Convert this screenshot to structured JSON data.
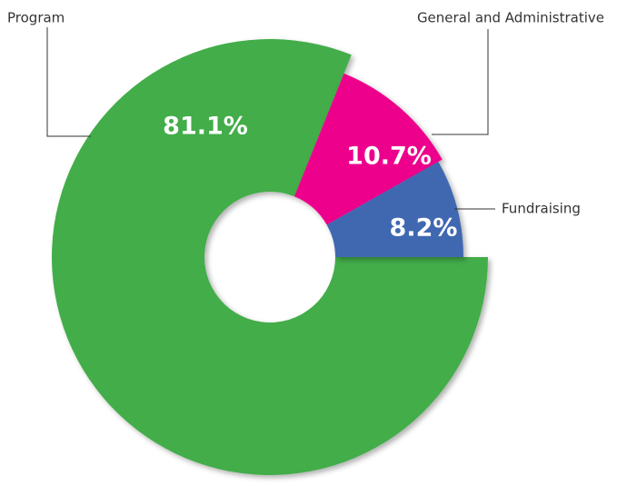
{
  "chart_data": {
    "type": "pie",
    "categories": [
      "Program",
      "General and Administrative",
      "Fundraising"
    ],
    "values": [
      81.1,
      10.7,
      8.2
    ],
    "value_labels": [
      "81.1%",
      "10.7%",
      "8.2%"
    ],
    "colors": [
      "#43ad4a",
      "#ec008c",
      "#3f67b1"
    ]
  }
}
